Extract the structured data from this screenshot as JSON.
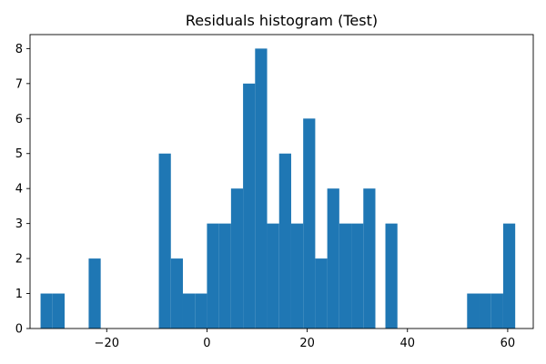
{
  "chart_data": {
    "type": "bar",
    "title": "Residuals histogram (Test)",
    "xlabel": "",
    "ylabel": "",
    "bin_width": 2.4,
    "xlim": [
      -35.3,
      65.1
    ],
    "ylim": [
      0,
      8.4
    ],
    "bins": [
      {
        "x0": -33.2,
        "x1": -30.8,
        "count": 1
      },
      {
        "x0": -30.8,
        "x1": -28.4,
        "count": 1
      },
      {
        "x0": -23.6,
        "x1": -21.2,
        "count": 2
      },
      {
        "x0": -9.6,
        "x1": -7.2,
        "count": 5
      },
      {
        "x0": -7.2,
        "x1": -4.8,
        "count": 2
      },
      {
        "x0": -4.8,
        "x1": -2.4,
        "count": 1
      },
      {
        "x0": -2.4,
        "x1": 0.0,
        "count": 1
      },
      {
        "x0": 0.0,
        "x1": 2.4,
        "count": 3
      },
      {
        "x0": 2.4,
        "x1": 4.8,
        "count": 3
      },
      {
        "x0": 4.8,
        "x1": 7.2,
        "count": 4
      },
      {
        "x0": 7.2,
        "x1": 9.6,
        "count": 7
      },
      {
        "x0": 9.6,
        "x1": 12.0,
        "count": 8
      },
      {
        "x0": 12.0,
        "x1": 14.4,
        "count": 3
      },
      {
        "x0": 14.4,
        "x1": 16.8,
        "count": 5
      },
      {
        "x0": 16.8,
        "x1": 19.2,
        "count": 3
      },
      {
        "x0": 19.2,
        "x1": 21.6,
        "count": 6
      },
      {
        "x0": 21.6,
        "x1": 24.0,
        "count": 2
      },
      {
        "x0": 24.0,
        "x1": 26.4,
        "count": 4
      },
      {
        "x0": 26.4,
        "x1": 28.8,
        "count": 3
      },
      {
        "x0": 28.8,
        "x1": 31.2,
        "count": 3
      },
      {
        "x0": 31.2,
        "x1": 33.6,
        "count": 4
      },
      {
        "x0": 35.6,
        "x1": 38.0,
        "count": 3
      },
      {
        "x0": 51.9,
        "x1": 54.3,
        "count": 1
      },
      {
        "x0": 54.3,
        "x1": 56.7,
        "count": 1
      },
      {
        "x0": 56.7,
        "x1": 59.1,
        "count": 1
      },
      {
        "x0": 59.1,
        "x1": 61.5,
        "count": 3
      }
    ],
    "x_ticks": [
      {
        "value": -20,
        "label": "−20"
      },
      {
        "value": 0,
        "label": "0"
      },
      {
        "value": 20,
        "label": "20"
      },
      {
        "value": 40,
        "label": "40"
      },
      {
        "value": 60,
        "label": "60"
      }
    ],
    "y_ticks": [
      {
        "value": 0,
        "label": "0"
      },
      {
        "value": 1,
        "label": "1"
      },
      {
        "value": 2,
        "label": "2"
      },
      {
        "value": 3,
        "label": "3"
      },
      {
        "value": 4,
        "label": "4"
      },
      {
        "value": 5,
        "label": "5"
      },
      {
        "value": 6,
        "label": "6"
      },
      {
        "value": 7,
        "label": "7"
      },
      {
        "value": 8,
        "label": "8"
      }
    ],
    "grid": false,
    "legend": "none",
    "colors": {
      "bar": "#1f77b4",
      "axis": "#000000",
      "background": "#ffffff"
    }
  }
}
